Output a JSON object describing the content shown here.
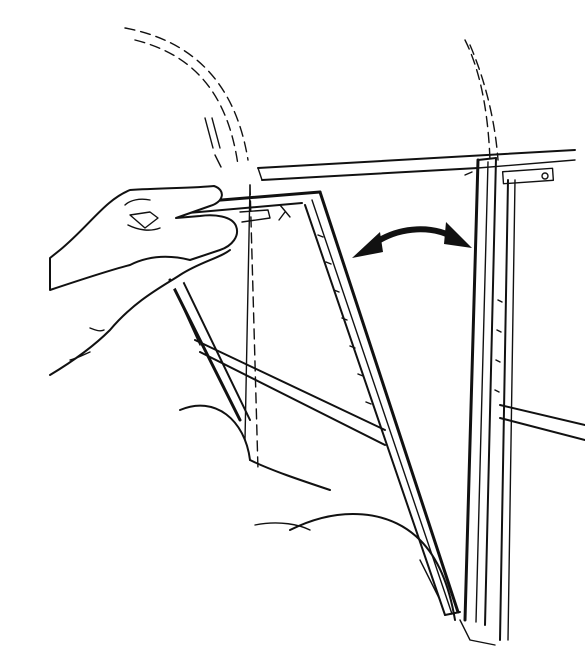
{
  "illustration": {
    "subject": "",
    "ink_color": "#111111",
    "paper_color": "#ffffff"
  }
}
